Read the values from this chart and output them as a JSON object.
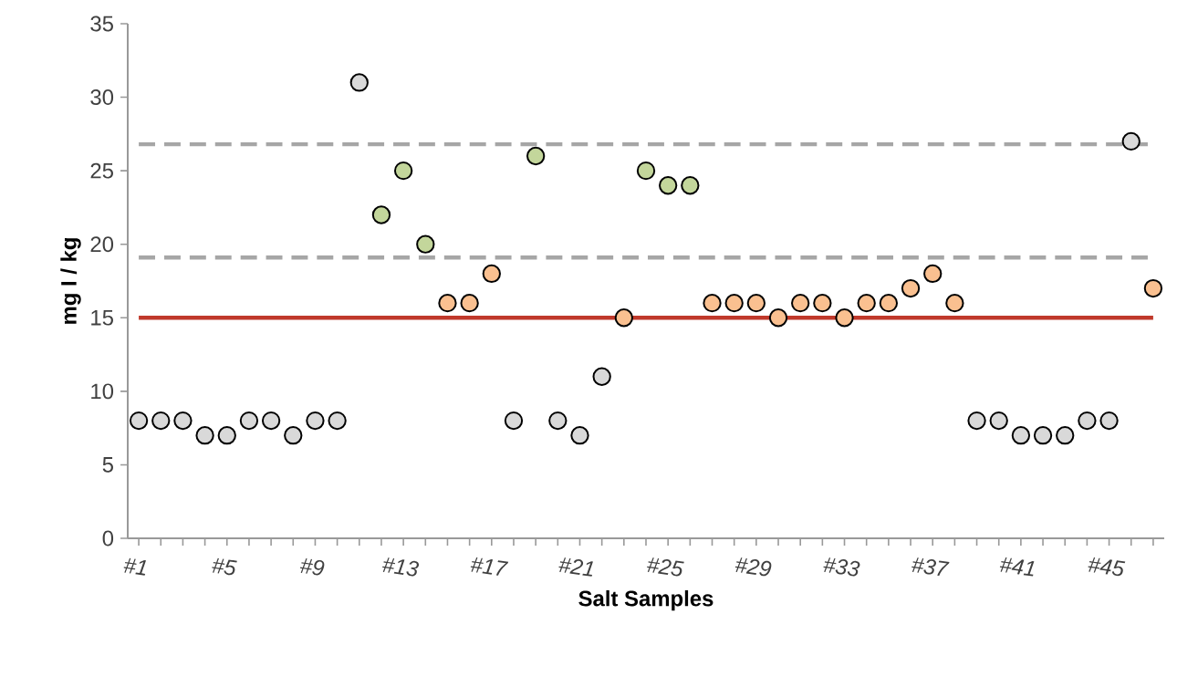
{
  "chart_data": {
    "type": "scatter",
    "xlabel": "Salt Samples",
    "ylabel": "mg I / kg",
    "categories": [
      "#1",
      null,
      null,
      null,
      "#5",
      null,
      null,
      null,
      "#9",
      null,
      null,
      null,
      "#13",
      null,
      null,
      null,
      "#17",
      null,
      null,
      null,
      "#21",
      null,
      null,
      null,
      "#25",
      null,
      null,
      null,
      "#29",
      null,
      null,
      null,
      "#33",
      null,
      null,
      null,
      "#37",
      null,
      null,
      null,
      "#41",
      null,
      null,
      null,
      "#45",
      null,
      null
    ],
    "values": [
      8,
      8,
      8,
      7,
      7,
      8,
      8,
      7,
      8,
      8,
      31,
      22,
      25,
      20,
      16,
      16,
      18,
      8,
      26,
      8,
      7,
      11,
      15,
      25,
      24,
      24,
      16,
      16,
      16,
      15,
      16,
      16,
      15,
      16,
      16,
      17,
      18,
      16,
      8,
      8,
      7,
      7,
      7,
      8,
      8,
      27,
      17
    ],
    "colors": [
      "#d9d9d9",
      "#d9d9d9",
      "#d9d9d9",
      "#d9d9d9",
      "#d9d9d9",
      "#d9d9d9",
      "#d9d9d9",
      "#d9d9d9",
      "#d9d9d9",
      "#d9d9d9",
      "#d9d9d9",
      "#c3d69b",
      "#c3d69b",
      "#c3d69b",
      "#fac090",
      "#fac090",
      "#fac090",
      "#d9d9d9",
      "#c3d69b",
      "#d9d9d9",
      "#d9d9d9",
      "#d9d9d9",
      "#fac090",
      "#c3d69b",
      "#c3d69b",
      "#c3d69b",
      "#fac090",
      "#fac090",
      "#fac090",
      "#fac090",
      "#fac090",
      "#fac090",
      "#fac090",
      "#fac090",
      "#fac090",
      "#fac090",
      "#fac090",
      "#fac090",
      "#d9d9d9",
      "#d9d9d9",
      "#d9d9d9",
      "#d9d9d9",
      "#d9d9d9",
      "#d9d9d9",
      "#d9d9d9",
      "#d9d9d9",
      "#fac090"
    ],
    "marker": "circle",
    "ylim": [
      0,
      35
    ],
    "yticks": [
      0,
      5,
      10,
      15,
      20,
      25,
      30,
      35
    ],
    "ref_lines": [
      {
        "axis": "y",
        "value": 15,
        "color": "#c0392b",
        "line_style": "solid"
      },
      {
        "axis": "y",
        "value": 19.1,
        "color": "#a6a6a6",
        "line_style": "dashed"
      },
      {
        "axis": "y",
        "value": 26.8,
        "color": "#a6a6a6",
        "line_style": "dashed"
      }
    ]
  }
}
